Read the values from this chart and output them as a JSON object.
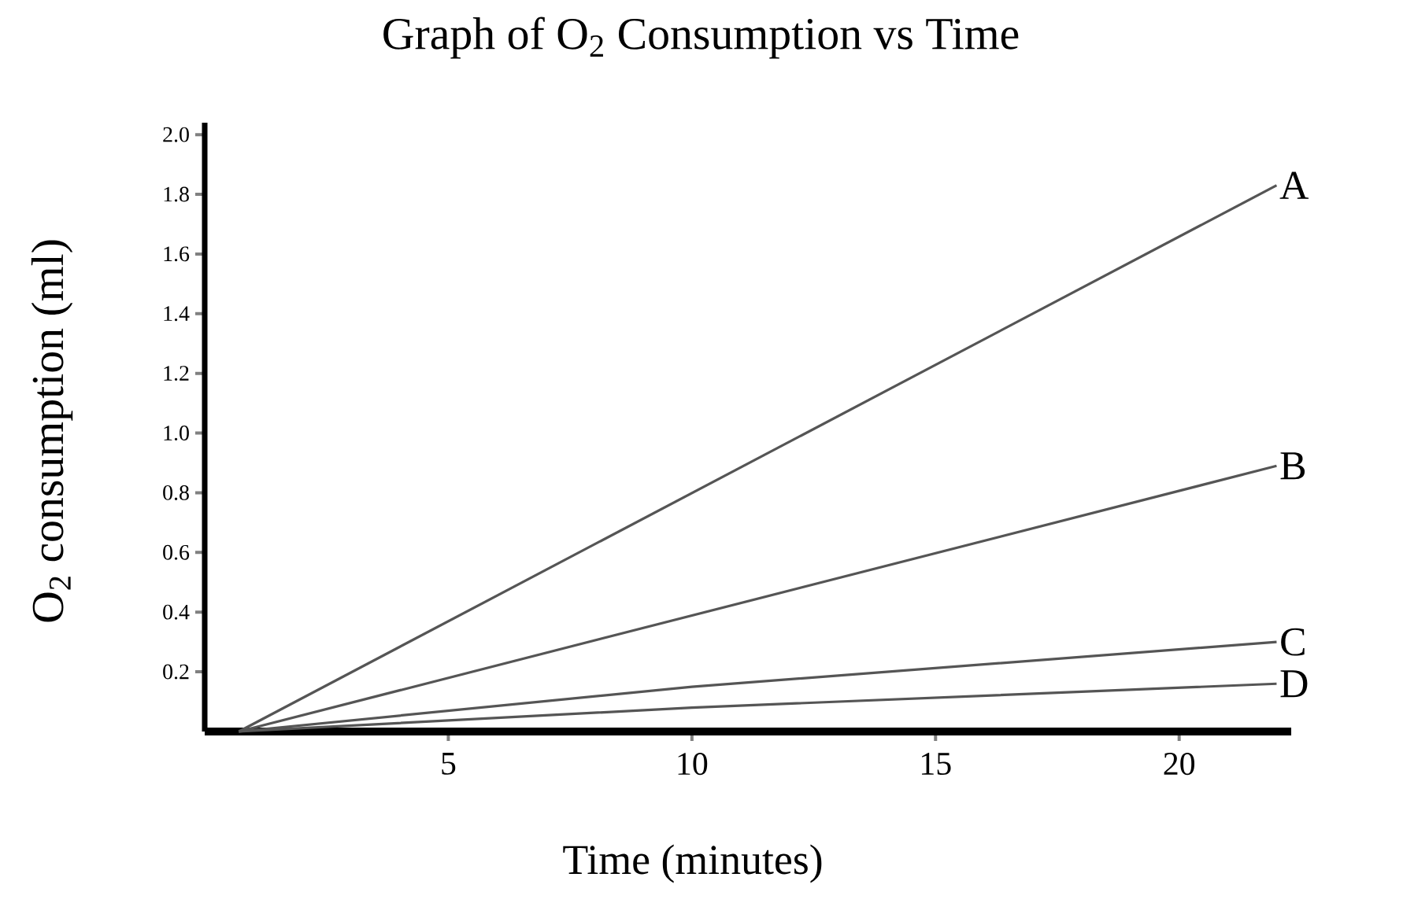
{
  "chart_data": {
    "type": "line",
    "title": "Graph of O$_{2}$ Consumption vs Time",
    "xlabel": "Time (minutes)",
    "ylabel": "O$_{2}$ consumption (ml)",
    "xlim": [
      0,
      22.3
    ],
    "xticks": [
      5,
      10,
      15,
      20
    ],
    "ylim": [
      0,
      2.04
    ],
    "yticks": [
      0.2,
      0.4,
      0.6,
      0.8,
      {
        "value": 1,
        "label": "1.0"
      },
      1.2,
      1.4,
      1.6,
      1.8,
      {
        "value": 2,
        "label": "2.0"
      }
    ],
    "grid": false,
    "legend": false,
    "marker": "none",
    "line_style": "solid",
    "series": [
      {
        "name": "A",
        "color": "#555555",
        "x": [
          0.7,
          22
        ],
        "values": [
          0,
          1.83
        ]
      },
      {
        "name": "B",
        "color": "#555555",
        "x": [
          0.7,
          22
        ],
        "values": [
          0,
          0.89
        ]
      },
      {
        "name": "C",
        "color": "#555555",
        "x": [
          0.7,
          10,
          22
        ],
        "values": [
          0,
          0.15,
          0.3
        ]
      },
      {
        "name": "D",
        "color": "#555555",
        "x": [
          0.7,
          10,
          22
        ],
        "values": [
          0,
          0.08,
          0.16
        ]
      }
    ]
  }
}
